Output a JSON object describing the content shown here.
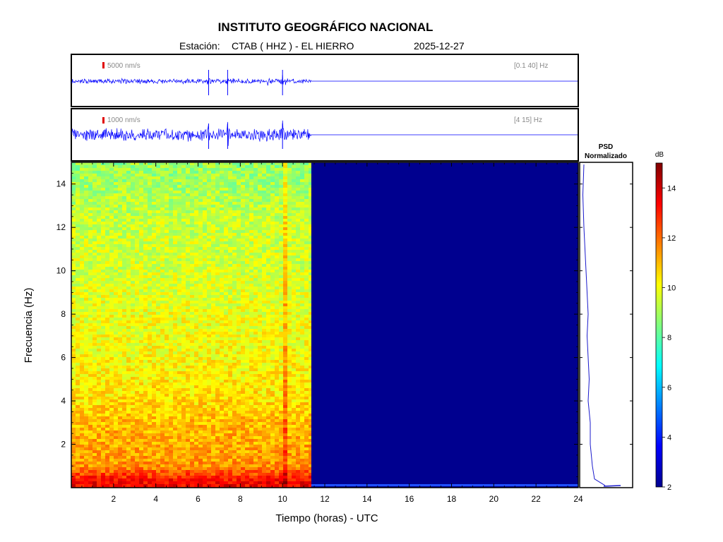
{
  "header": {
    "title": "INSTITUTO GEOGRÁFICO NACIONAL",
    "station_label": "Estación:",
    "station": "CTAB ( HHZ ) - EL HIERRO",
    "date": "2025-12-27"
  },
  "colors": {
    "trace": "#0000ff",
    "empty_region": "#00008f",
    "psd_line": "#1a1acc",
    "scale_marker": "#e00000"
  },
  "chart_data": [
    {
      "type": "line",
      "panel": "seismogram-broadband",
      "amplitude_scale": "5000 nm/s",
      "band": "[0.1 40] Hz",
      "x_range_hours": [
        0,
        24
      ],
      "data_end_hour": 11.35,
      "events_hours": [
        6.5,
        7.4,
        10.0
      ]
    },
    {
      "type": "line",
      "panel": "seismogram-filtered",
      "amplitude_scale": "1000 nm/s",
      "band": "[4 15] Hz",
      "x_range_hours": [
        0,
        24
      ],
      "data_end_hour": 11.35,
      "events_hours": [
        6.5,
        7.4,
        10.0
      ]
    },
    {
      "type": "heatmap",
      "panel": "spectrogram",
      "xlabel": "Tiempo (horas) - UTC",
      "ylabel": "Frecuencia  (Hz)",
      "xlim": [
        0,
        24
      ],
      "ylim": [
        0,
        15
      ],
      "x_ticks": [
        2,
        4,
        6,
        8,
        10,
        12,
        14,
        16,
        18,
        20,
        22,
        24
      ],
      "y_ticks": [
        2,
        4,
        6,
        8,
        10,
        12,
        14
      ],
      "data_end_hour": 11.35,
      "power_profile_db": [
        {
          "hz": 0.25,
          "db": 13.5
        },
        {
          "hz": 1,
          "db": 11.5
        },
        {
          "hz": 2,
          "db": 11.2
        },
        {
          "hz": 3,
          "db": 11.0
        },
        {
          "hz": 4,
          "db": 10.5
        },
        {
          "hz": 5,
          "db": 10.3
        },
        {
          "hz": 6,
          "db": 10.1
        },
        {
          "hz": 8,
          "db": 9.9
        },
        {
          "hz": 10,
          "db": 9.6
        },
        {
          "hz": 12,
          "db": 9.5
        },
        {
          "hz": 14,
          "db": 9.0
        },
        {
          "hz": 15,
          "db": 8.8
        }
      ]
    },
    {
      "type": "line",
      "panel": "psd",
      "title_line1": "PSD",
      "title_line2": "Normalizado",
      "ylim": [
        0,
        15
      ],
      "x": [
        0.12,
        0.07,
        0.06,
        0.05,
        0.05,
        0.04,
        0.045,
        0.04,
        0.035,
        0.04,
        0.035,
        0.03,
        0.025,
        0.02,
        0.015,
        0.02
      ],
      "y": [
        0.1,
        0.4,
        1.0,
        2.0,
        3.0,
        4.0,
        5.0,
        6.0,
        7.0,
        8.0,
        9.0,
        10.0,
        11.0,
        12.0,
        13.5,
        14.9
      ]
    },
    {
      "type": "heatmap",
      "panel": "colorbar",
      "label": "dB",
      "range": [
        2,
        15
      ],
      "ticks": [
        2,
        4,
        6,
        8,
        10,
        12,
        14
      ]
    }
  ]
}
